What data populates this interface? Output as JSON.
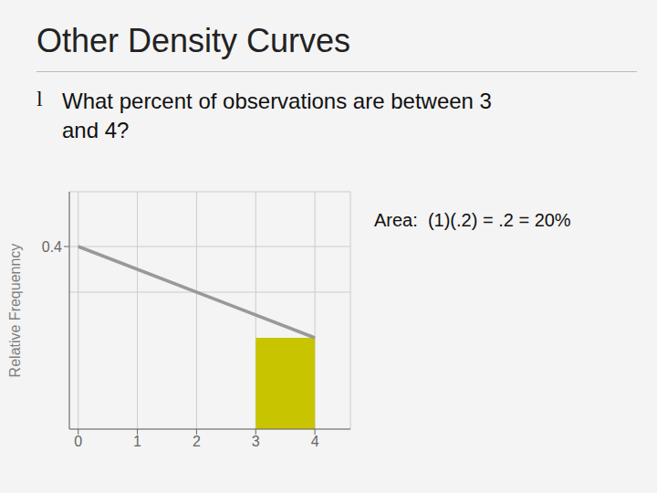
{
  "chart_data": {
    "type": "line",
    "title": "Other Density Curves",
    "bullet": "l",
    "bullet_text": "What percent of observations are between 3\nand 4?",
    "annotation": "Area:  (1)(.2) = .2 = 20%",
    "ylabel": "Relative Frequenncy",
    "x": [
      0,
      4
    ],
    "values": [
      0.4,
      0.2
    ],
    "color": "#999999",
    "xlim": [
      -0.15,
      4.6
    ],
    "xticks": [
      0,
      1,
      2,
      3,
      4
    ],
    "ylim": [
      0,
      0.52
    ],
    "yticks": [
      0.4
    ],
    "grid": true,
    "y_lines": [
      0.3
    ],
    "shaded": {
      "x": [
        3,
        4
      ],
      "y": [
        0,
        0.2
      ],
      "color": "#c8c400"
    }
  }
}
